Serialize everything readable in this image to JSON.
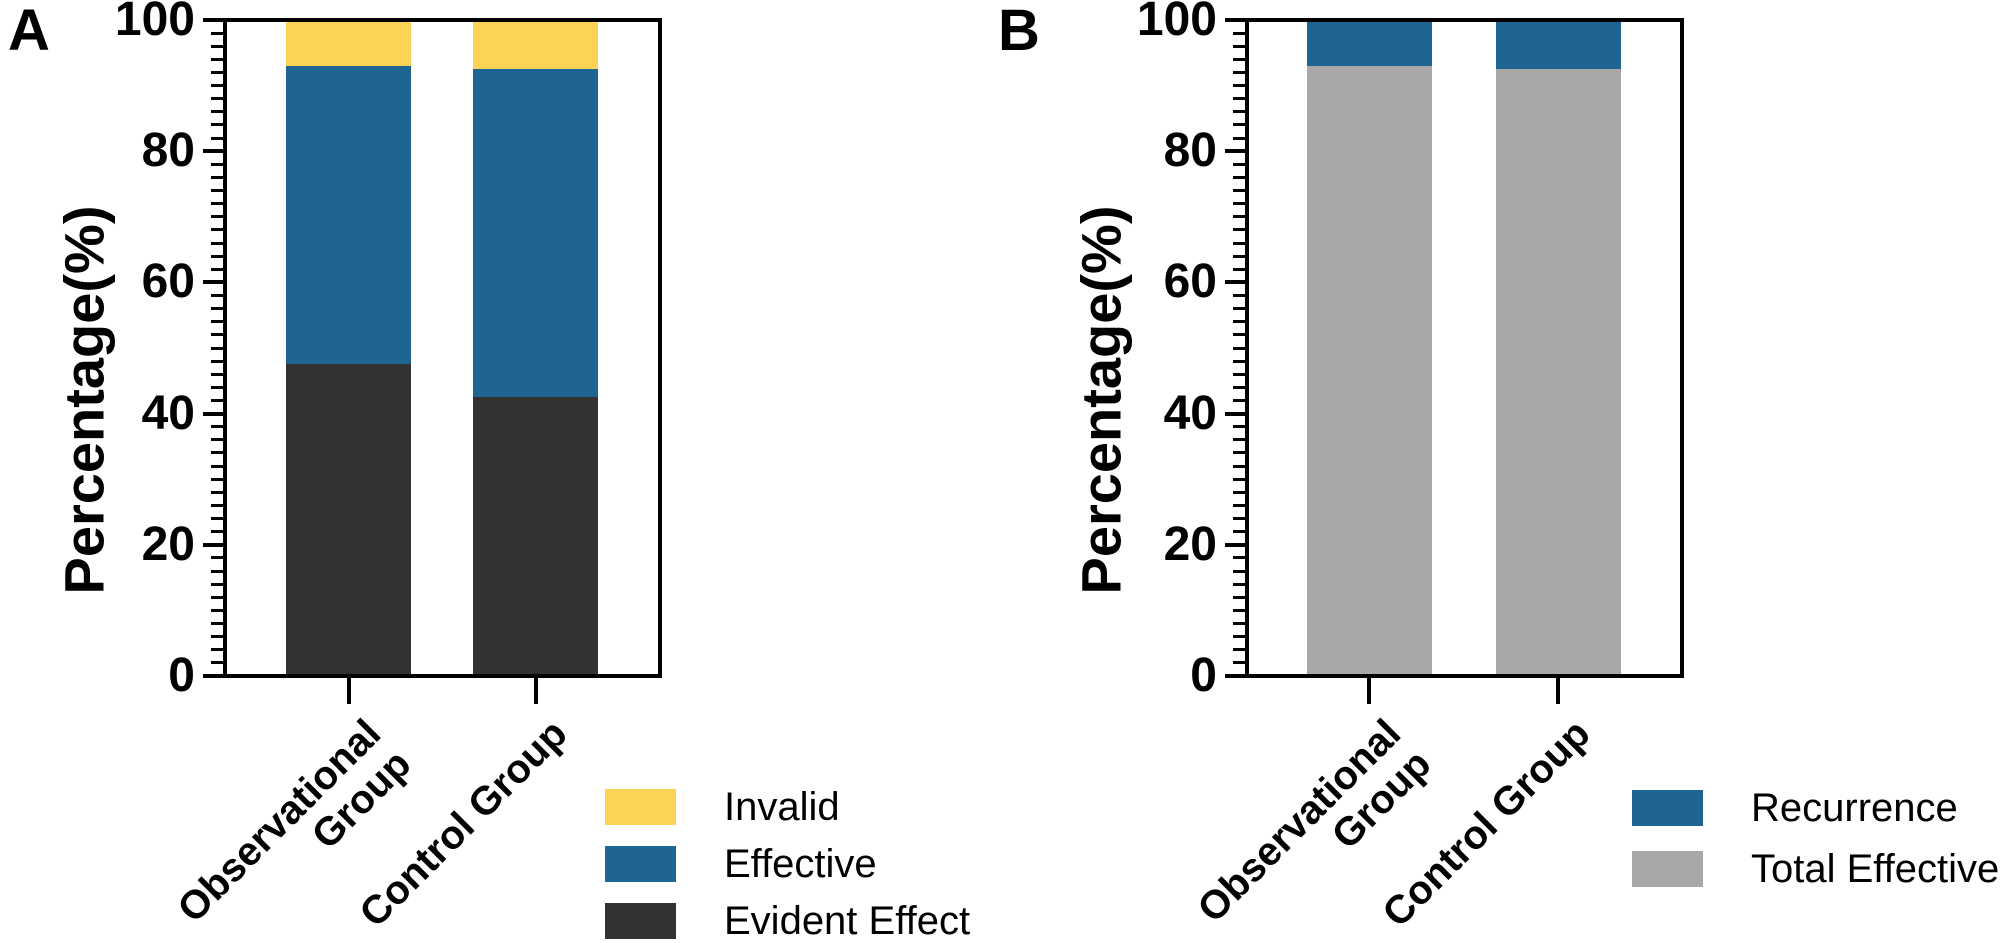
{
  "figure": {
    "colors": {
      "blue": "#1F6593",
      "yellow": "#FBD355",
      "dark_gray": "#333132",
      "light_gray": "#A9A7A8",
      "axis": "#000000",
      "background": "#FFFFFF"
    },
    "panels": [
      {
        "panel_label": "A",
        "y_axis_title": "Percentage(%)",
        "y_tick_labels": [
          "0",
          "20",
          "40",
          "60",
          "80",
          "100"
        ],
        "y_min": 0,
        "y_max": 100,
        "y_major_step": 20,
        "y_minor_step": 2,
        "x_categories": [
          {
            "label": "Observational Group",
            "lines": [
              "Observational",
              "Group"
            ]
          },
          {
            "label": "Control Group",
            "lines": [
              "Control Group"
            ]
          }
        ],
        "legend": [
          {
            "label": "Invalid",
            "color": "#FBD355"
          },
          {
            "label": "Effective",
            "color": "#1F6593"
          },
          {
            "label": "Evident Effect",
            "color": "#333132"
          }
        ]
      },
      {
        "panel_label": "B",
        "y_axis_title": "Percentage(%)",
        "y_tick_labels": [
          "0",
          "20",
          "40",
          "60",
          "80",
          "100"
        ],
        "y_min": 0,
        "y_max": 100,
        "y_major_step": 20,
        "y_minor_step": 2,
        "x_categories": [
          {
            "label": "Observational Group",
            "lines": [
              "Observational",
              "Group"
            ]
          },
          {
            "label": "Control Group",
            "lines": [
              "Control Group"
            ]
          }
        ],
        "legend": [
          {
            "label": "Recurrence",
            "color": "#1F6593"
          },
          {
            "label": "Total Effective",
            "color": "#A9A7A8"
          }
        ]
      }
    ]
  },
  "chart_data": [
    {
      "type": "bar",
      "stacked": true,
      "panel": "A",
      "title": "",
      "xlabel": "",
      "ylabel": "Percentage(%)",
      "ylim": [
        0,
        100
      ],
      "grid": false,
      "legend_position": "bottom-right",
      "categories": [
        "Observational Group",
        "Control Group"
      ],
      "series": [
        {
          "name": "Evident Effect",
          "color": "#333132",
          "values": [
            47.5,
            42.5
          ]
        },
        {
          "name": "Effective",
          "color": "#1F6593",
          "values": [
            45.5,
            50.0
          ]
        },
        {
          "name": "Invalid",
          "color": "#FBD355",
          "values": [
            7.0,
            7.5
          ]
        }
      ]
    },
    {
      "type": "bar",
      "stacked": true,
      "panel": "B",
      "title": "",
      "xlabel": "",
      "ylabel": "Percentage(%)",
      "ylim": [
        0,
        100
      ],
      "grid": false,
      "legend_position": "bottom-right",
      "categories": [
        "Observational Group",
        "Control Group"
      ],
      "series": [
        {
          "name": "Total Effective",
          "color": "#A9A7A8",
          "values": [
            93.0,
            92.5
          ]
        },
        {
          "name": "Recurrence",
          "color": "#1F6593",
          "values": [
            7.0,
            7.5
          ]
        }
      ]
    }
  ]
}
